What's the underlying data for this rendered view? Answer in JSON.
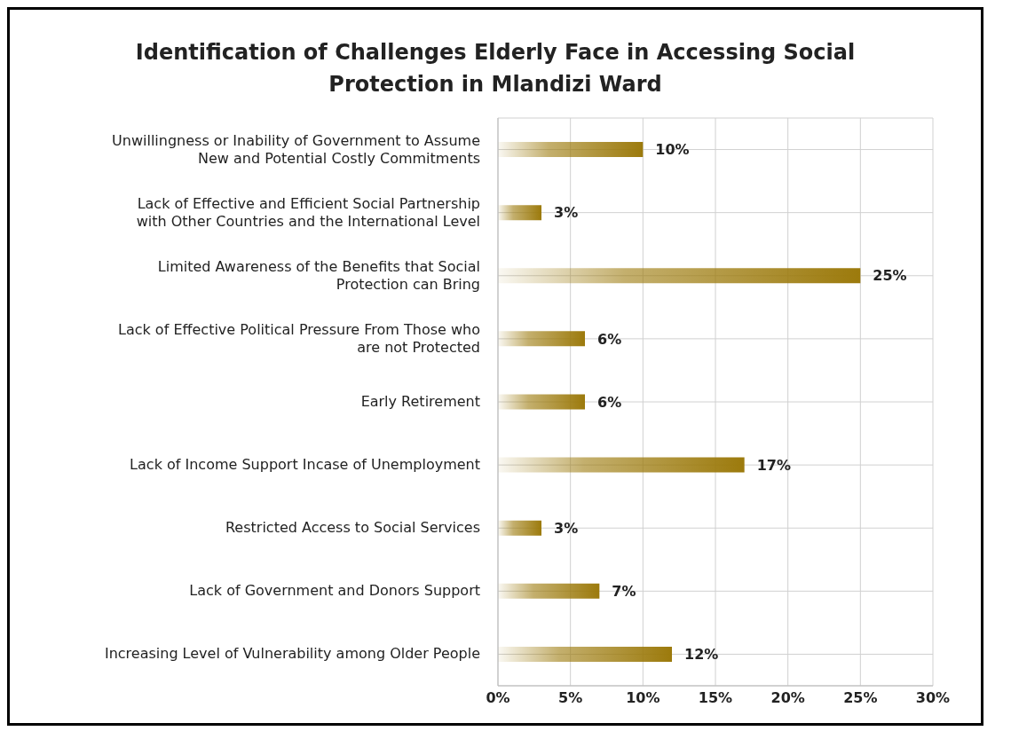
{
  "chart_data": {
    "type": "bar",
    "orientation": "horizontal",
    "title": "Identification of Challenges Elderly Face in Accessing Social Protection in Mlandizi Ward",
    "categories": [
      "Unwillingness or Inability of Government to Assume New and Potential Costly Commitments",
      "Lack of Effective and Efficient Social Partnership with Other Countries and the International Level",
      "Limited Awareness of the Benefits that Social Protection can Bring",
      "Lack of Effective Political Pressure From Those who are not Protected",
      "Early Retirement",
      "Lack of Income Support Incase of Unemployment",
      "Restricted Access to Social Services",
      "Lack of Government and Donors Support",
      "Increasing Level of Vulnerability among Older People"
    ],
    "values": [
      10,
      3,
      25,
      6,
      6,
      17,
      3,
      7,
      12
    ],
    "value_labels": [
      "10%",
      "3%",
      "25%",
      "6%",
      "6%",
      "17%",
      "3%",
      "7%",
      "12%"
    ],
    "color": "#9c7a0c",
    "xlim": [
      0,
      30
    ],
    "xticks": [
      {
        "value": 0,
        "label": "0%"
      },
      {
        "value": 5,
        "label": "5%"
      },
      {
        "value": 10,
        "label": "10%"
      },
      {
        "value": 15,
        "label": "15%"
      },
      {
        "value": 20,
        "label": "20%"
      },
      {
        "value": 25,
        "label": "25%"
      },
      {
        "value": 30,
        "label": "30%"
      }
    ],
    "grid": true,
    "legend": false
  }
}
